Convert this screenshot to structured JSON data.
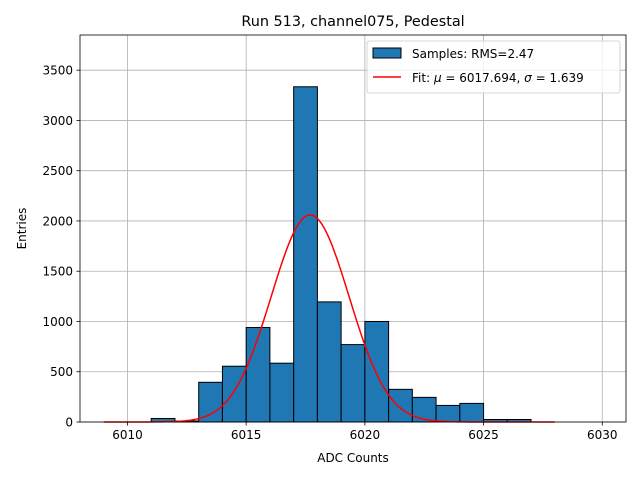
{
  "chart_data": {
    "type": "bar",
    "title": "Run 513, channel075, Pedestal",
    "xlabel": "ADC Counts",
    "ylabel": "Entries",
    "xlim": [
      6008.0,
      6031.0
    ],
    "ylim": [
      0,
      3850
    ],
    "x_ticks": [
      6010,
      6015,
      6020,
      6025,
      6030
    ],
    "y_ticks": [
      0,
      500,
      1000,
      1500,
      2000,
      2500,
      3000,
      3500
    ],
    "grid": true,
    "legend_position": "top-right",
    "histogram": {
      "name": "Samples: RMS=2.47",
      "bin_width": 1,
      "bins": [
        {
          "left": 6011,
          "count": 35
        },
        {
          "left": 6012,
          "count": 10
        },
        {
          "left": 6013,
          "count": 395
        },
        {
          "left": 6014,
          "count": 555
        },
        {
          "left": 6015,
          "count": 940
        },
        {
          "left": 6016,
          "count": 585
        },
        {
          "left": 6017,
          "count": 3335
        },
        {
          "left": 6018,
          "count": 1195
        },
        {
          "left": 6019,
          "count": 770
        },
        {
          "left": 6020,
          "count": 1000
        },
        {
          "left": 6021,
          "count": 325
        },
        {
          "left": 6022,
          "count": 245
        },
        {
          "left": 6023,
          "count": 165
        },
        {
          "left": 6024,
          "count": 185
        },
        {
          "left": 6025,
          "count": 25
        },
        {
          "left": 6026,
          "count": 25
        }
      ],
      "color": "#1f77b4",
      "edge_color": "#000000"
    },
    "fit": {
      "name_prefix": "Fit: ",
      "mu": 6017.694,
      "sigma": 1.639,
      "amplitude": 2060,
      "x_range": [
        6009,
        6028
      ],
      "color": "#ff0000"
    },
    "legend": {
      "samples_label": "Samples: RMS=2.47",
      "fit_label_prefix": "Fit: ",
      "fit_mu_symbol": "μ",
      "fit_mu_value": " = 6017.694, ",
      "fit_sigma_symbol": "σ",
      "fit_sigma_value": " = 1.639"
    }
  }
}
